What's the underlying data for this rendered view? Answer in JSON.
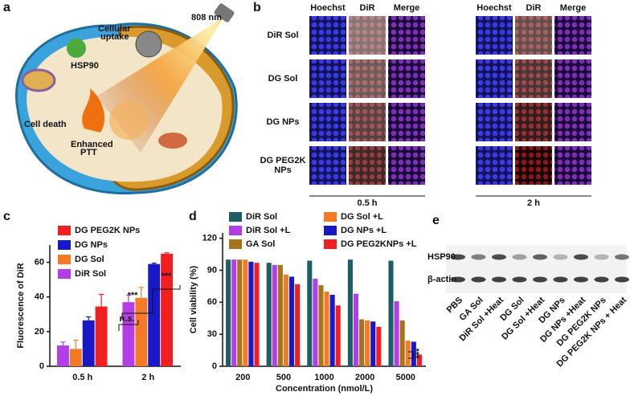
{
  "panel_letters": [
    "a",
    "b",
    "c",
    "d",
    "e"
  ],
  "scheme": {
    "laser": "808 nm",
    "uptake": [
      "Cellular",
      "uptake"
    ],
    "target": "HSP90",
    "death": "Cell death",
    "ptt": [
      "Enhanced",
      "PTT"
    ]
  },
  "microscopy": {
    "columns": [
      "Hoechst",
      "DiR",
      "Merge"
    ],
    "rows": [
      [
        "DiR Sol"
      ],
      [
        "DG Sol"
      ],
      [
        "DG NPs"
      ],
      [
        "DG PEG2K",
        "NPs"
      ]
    ],
    "times": [
      "0.5 h",
      "2 h"
    ]
  },
  "blot": {
    "proteins": [
      "HSP90",
      "β-actin"
    ],
    "lanes": [
      "PBS",
      "GA Sol",
      "DiR Sol +Heat",
      "DG Sol",
      "DG Sol +Heat",
      "DG NPs",
      "DG NPs +Heat",
      "DG PEG2K NPs",
      "DG PEG2K NPs + Heat"
    ]
  },
  "chart_data": [
    {
      "type": "bar",
      "y_label": "Fluorescence of DiR",
      "categories": [
        "0.5 h",
        "2 h"
      ],
      "ylim": [
        0,
        70
      ],
      "yticks": [
        0,
        20,
        40,
        60
      ],
      "legend": "top-left",
      "series": [
        {
          "name": "DiR Sol",
          "color": "#b23ee6",
          "values": [
            12,
            37
          ],
          "errors": [
            2,
            4
          ]
        },
        {
          "name": "DG Sol",
          "color": "#f57a26",
          "values": [
            10,
            39.5
          ],
          "errors": [
            5,
            6
          ]
        },
        {
          "name": "DG NPs",
          "color": "#1818c8",
          "values": [
            26.5,
            59
          ],
          "errors": [
            2,
            0.5
          ]
        },
        {
          "name": "DG PEG2K NPs",
          "color": "#f02020",
          "values": [
            34.5,
            65
          ],
          "errors": [
            7,
            0.5
          ]
        }
      ],
      "annotations": [
        "n.s.",
        "***",
        "***"
      ]
    },
    {
      "type": "bar",
      "x_label": "Concentration (nmol/L)",
      "y_label": "Cell viability (%)",
      "categories": [
        "200",
        "500",
        "1000",
        "2000",
        "5000"
      ],
      "ylim": [
        0,
        125
      ],
      "yticks": [
        0,
        30,
        60,
        90,
        120
      ],
      "legend": "top",
      "series": [
        {
          "name": "DiR Sol",
          "color": "#1d5e66",
          "values": [
            100,
            97,
            99,
            100,
            99
          ]
        },
        {
          "name": "DiR Sol +L",
          "color": "#b23ee6",
          "values": [
            100,
            95,
            82,
            68,
            61
          ]
        },
        {
          "name": "GA Sol",
          "color": "#a8741a",
          "values": [
            100,
            95,
            76,
            44,
            43
          ]
        },
        {
          "name": "DG Sol +L",
          "color": "#f57a26",
          "values": [
            100,
            86,
            70,
            43,
            24
          ]
        },
        {
          "name": "DG NPs +L",
          "color": "#1818c8",
          "values": [
            98,
            84,
            67,
            42,
            23
          ]
        },
        {
          "name": "DG PEG2KNPs +L",
          "color": "#f02020",
          "values": [
            97,
            77,
            57,
            37,
            11
          ]
        }
      ],
      "annotations": [
        "***"
      ]
    }
  ]
}
